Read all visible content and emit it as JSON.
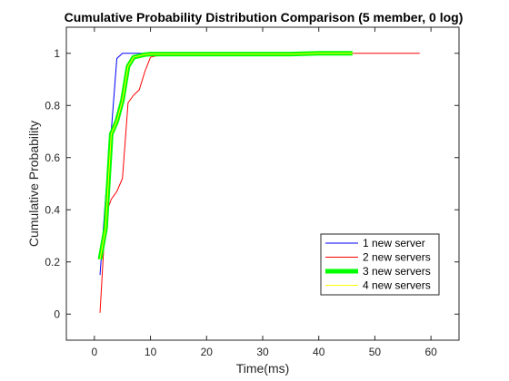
{
  "chart_data": {
    "type": "line",
    "title": "Cumulative Probability Distribution Comparison (5 member, 0 log)",
    "xlabel": "Time(ms)",
    "ylabel": "Cumulative Probability",
    "xlim": [
      -5,
      65
    ],
    "ylim": [
      -0.1,
      1.1
    ],
    "xticks": [
      0,
      10,
      20,
      30,
      40,
      50,
      60
    ],
    "yticks": [
      0,
      0.2,
      0.4,
      0.6,
      0.8,
      1
    ],
    "ytick_labels": [
      "0",
      "0.2",
      "0.4",
      "0.6",
      "0.8",
      "1"
    ],
    "grid": false,
    "legend_position": "lower-right",
    "series": [
      {
        "name": "1 new server",
        "color": "#0000ff",
        "line_width": 1,
        "points": [
          [
            1,
            0.15
          ],
          [
            2,
            0.45
          ],
          [
            3,
            0.7
          ],
          [
            4,
            0.98
          ],
          [
            5,
            1.0
          ],
          [
            10,
            1.0
          ],
          [
            20,
            1.0
          ],
          [
            30,
            1.0
          ],
          [
            40,
            1.0
          ]
        ]
      },
      {
        "name": "2 new servers",
        "color": "#ff0000",
        "line_width": 1,
        "points": [
          [
            1,
            0.005
          ],
          [
            2,
            0.38
          ],
          [
            3,
            0.44
          ],
          [
            4,
            0.47
          ],
          [
            5,
            0.52
          ],
          [
            6,
            0.81
          ],
          [
            7,
            0.84
          ],
          [
            8,
            0.86
          ],
          [
            9,
            0.93
          ],
          [
            10,
            0.985
          ],
          [
            11,
            0.99
          ],
          [
            20,
            0.995
          ],
          [
            30,
            0.997
          ],
          [
            40,
            0.998
          ],
          [
            45,
            1.0
          ],
          [
            50,
            1.0
          ],
          [
            58,
            1.0
          ]
        ]
      },
      {
        "name": "3 new servers",
        "color": "#00ff00",
        "line_width": 5,
        "points": [
          [
            1,
            0.21
          ],
          [
            2,
            0.33
          ],
          [
            3,
            0.69
          ],
          [
            4,
            0.74
          ],
          [
            5,
            0.82
          ],
          [
            6,
            0.95
          ],
          [
            7,
            0.985
          ],
          [
            8,
            0.99
          ],
          [
            9,
            0.995
          ],
          [
            10,
            0.997
          ],
          [
            20,
            0.997
          ],
          [
            30,
            0.997
          ],
          [
            35,
            0.997
          ],
          [
            40,
            1.0
          ],
          [
            46,
            1.0
          ]
        ]
      },
      {
        "name": "4 new servers",
        "color": "#ffff00",
        "line_width": 1,
        "points": [
          [
            1,
            0.21
          ],
          [
            2,
            0.33
          ],
          [
            3,
            0.69
          ],
          [
            4,
            0.74
          ],
          [
            5,
            0.82
          ],
          [
            6,
            0.95
          ],
          [
            7,
            0.985
          ],
          [
            8,
            0.99
          ],
          [
            9,
            0.995
          ],
          [
            10,
            0.997
          ],
          [
            20,
            0.997
          ],
          [
            30,
            0.997
          ],
          [
            35,
            0.997
          ],
          [
            40,
            1.0
          ],
          [
            46,
            1.0
          ]
        ]
      }
    ]
  }
}
